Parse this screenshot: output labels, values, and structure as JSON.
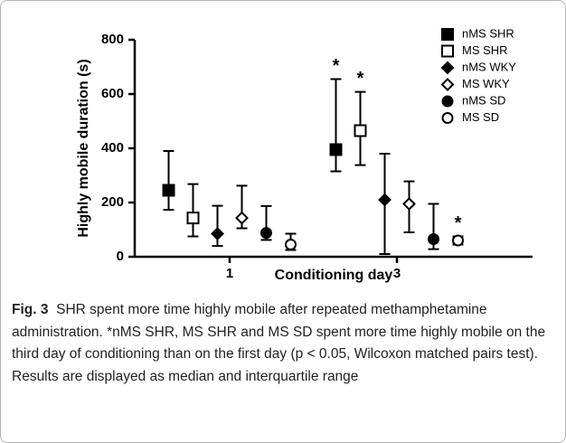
{
  "chart_data": {
    "type": "dot-errorbar",
    "xlabel": "Conditioning day",
    "ylabel": "Highly mobile duration (s)",
    "categories": [
      "1",
      "3"
    ],
    "ylim": [
      0,
      800
    ],
    "yticks": [
      0,
      200,
      400,
      600,
      800
    ],
    "legend": "upper right",
    "series": [
      {
        "name": "nMS SHR",
        "marker": "square",
        "filled": true,
        "values": [
          245,
          395
        ],
        "lower": [
          173,
          315
        ],
        "upper": [
          390,
          655
        ],
        "annotations": [
          null,
          "*"
        ]
      },
      {
        "name": "MS SHR",
        "marker": "square",
        "filled": false,
        "values": [
          143,
          465
        ],
        "lower": [
          75,
          338
        ],
        "upper": [
          268,
          608
        ],
        "annotations": [
          null,
          "*"
        ]
      },
      {
        "name": "nMS WKY",
        "marker": "diamond",
        "filled": true,
        "values": [
          85,
          210
        ],
        "lower": [
          40,
          10
        ],
        "upper": [
          188,
          380
        ],
        "annotations": [
          null,
          null
        ]
      },
      {
        "name": "MS WKY",
        "marker": "diamond",
        "filled": false,
        "values": [
          143,
          195
        ],
        "lower": [
          105,
          90
        ],
        "upper": [
          262,
          278
        ],
        "annotations": [
          null,
          null
        ]
      },
      {
        "name": "nMS SD",
        "marker": "circle",
        "filled": true,
        "values": [
          88,
          65
        ],
        "lower": [
          62,
          28
        ],
        "upper": [
          187,
          195
        ],
        "annotations": [
          null,
          null
        ]
      },
      {
        "name": "MS SD",
        "marker": "circle",
        "filled": false,
        "values": [
          45,
          60
        ],
        "lower": [
          25,
          45
        ],
        "upper": [
          85,
          75
        ],
        "annotations": [
          null,
          "*"
        ]
      }
    ]
  },
  "caption": {
    "label": "Fig. 3",
    "text": "SHR spent more time highly mobile after repeated methamphetamine administration. *nMS SHR, MS SHR and MS SD spent more time highly mobile on the third day of conditioning than on the first day (p < 0.05, Wilcoxon matched pairs test). Results are displayed as median and interquartile range"
  }
}
